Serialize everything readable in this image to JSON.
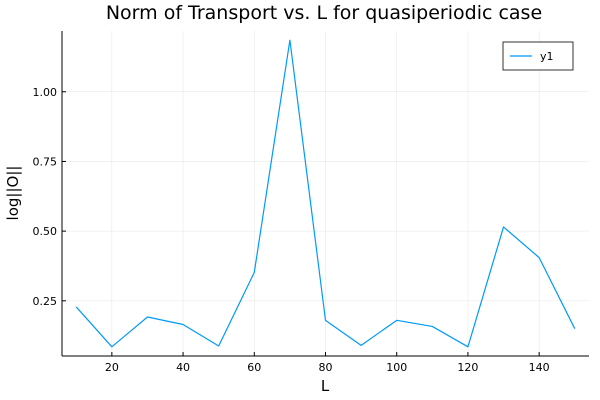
{
  "chart_data": {
    "type": "line",
    "title": "Norm of Transport vs. L for quasiperiodic case",
    "xlabel": "L",
    "ylabel": "log||O||",
    "x": [
      10,
      20,
      30,
      40,
      50,
      60,
      70,
      80,
      90,
      100,
      110,
      120,
      130,
      140,
      150
    ],
    "series": [
      {
        "name": "y1",
        "color": "#009af9",
        "values": [
          0.228,
          0.085,
          0.192,
          0.165,
          0.088,
          0.352,
          1.185,
          0.18,
          0.09,
          0.18,
          0.158,
          0.085,
          0.515,
          0.405,
          0.15
        ]
      }
    ],
    "xlim": [
      6,
      154
    ],
    "ylim": [
      0.052,
      1.218
    ],
    "xticks": [
      20,
      40,
      60,
      80,
      100,
      120,
      140
    ],
    "xtick_labels": [
      "20",
      "40",
      "60",
      "80",
      "100",
      "120",
      "140"
    ],
    "yticks": [
      0.25,
      0.5,
      0.75,
      1.0
    ],
    "ytick_labels": [
      "0.25",
      "0.50",
      "0.75",
      "1.00"
    ],
    "grid": true,
    "legend_position": "top-right"
  }
}
